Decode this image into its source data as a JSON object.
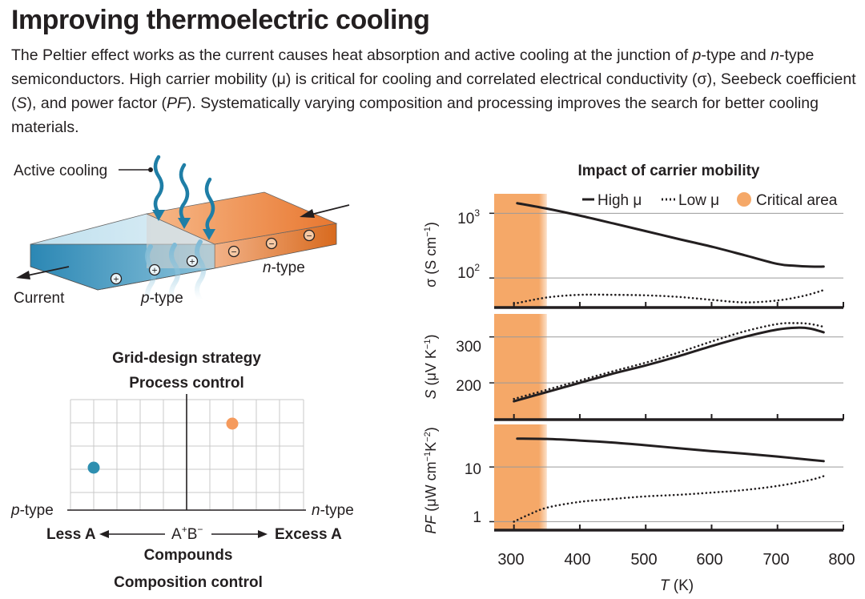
{
  "header": {
    "title": "Improving thermoelectric cooling",
    "intro": {
      "p1": "The Peltier effect works as the current causes heat absorption and active cooling at the junction of ",
      "p_type": "p",
      "p2": "-type and ",
      "n_type": "n",
      "p3": "-type semiconductors. High carrier mobility (μ) is critical for cooling and correlated electrical conductivity (σ), Seebeck coefficient (",
      "S": "S",
      "p4": "), and power factor (",
      "PF": "PF",
      "p5": "). Systematically varying composition and processing improves the search for better cooling materials."
    }
  },
  "device": {
    "active_cooling": "Active cooling",
    "current": "Current",
    "p_type_letter": "p",
    "p_type_suffix": "-type",
    "n_type_letter": "n",
    "n_type_suffix": "-type",
    "plus_sign": "+",
    "minus_sign": "−"
  },
  "grid_design": {
    "title": "Grid-design strategy",
    "process_control": "Process control",
    "p_type_letter": "p",
    "p_type_suffix": "-type",
    "n_type_letter": "n",
    "n_type_suffix": "-type",
    "less_a": "Less A",
    "excess_a": "Excess A",
    "compound_a": "A",
    "compound_a_sup": "+",
    "compound_b": "B",
    "compound_b_sup": "−",
    "compounds": "Compounds",
    "composition_control": "Composition control",
    "colors": {
      "blue_point": "#2e8fb0",
      "orange_point": "#f59a5c"
    }
  },
  "chart_data": {
    "type": "line",
    "title": "Impact of carrier mobility",
    "legend": {
      "high": "High μ",
      "low": "Low μ",
      "critical": "Critical area",
      "placement": "top"
    },
    "xlabel_var": "T",
    "xlabel_unit": " (K)",
    "x_ticks": [
      "300",
      "400",
      "500",
      "600",
      "700",
      "800"
    ],
    "xlim": [
      270,
      800
    ],
    "critical_range": [
      270,
      350
    ],
    "colors": {
      "critical": "#f5a868",
      "lines": "#231f20"
    },
    "panels": [
      {
        "id": "sigma",
        "ylabel_var": "σ",
        "ylabel_unit": " (S cm",
        "ylabel_sup": "−1",
        "ylabel_end": ")",
        "scale": "log",
        "ylim": [
          35,
          2000
        ],
        "tick_labels": [
          {
            "base": "10",
            "exp": "3",
            "value": 1000
          },
          {
            "base": "10",
            "exp": "2",
            "value": 100
          }
        ],
        "series": [
          {
            "name": "High μ",
            "style": "solid",
            "x": [
              305,
              350,
              400,
              450,
              500,
              550,
              600,
              650,
              700,
              725,
              750,
              770
            ],
            "y": [
              1430,
              1180,
              920,
              700,
              530,
              400,
              305,
              225,
              165,
              155,
              150,
              150
            ]
          },
          {
            "name": "Low μ",
            "style": "dotted",
            "x": [
              300,
              350,
              400,
              450,
              500,
              550,
              600,
              650,
              700,
              740,
              770
            ],
            "y": [
              40,
              50,
              55,
              55,
              54,
              51,
              46,
              42,
              45,
              53,
              65
            ]
          }
        ]
      },
      {
        "id": "seebeck",
        "ylabel_var": "S",
        "ylabel_unit": " (μV K",
        "ylabel_sup": "−1",
        "ylabel_end": ")",
        "scale": "linear",
        "ylim": [
          120,
          350
        ],
        "tick_labels": [
          {
            "base": "300",
            "exp": "",
            "value": 300
          },
          {
            "base": "200",
            "exp": "",
            "value": 200
          }
        ],
        "series": [
          {
            "name": "High μ",
            "style": "solid",
            "x": [
              300,
              350,
              400,
              450,
              500,
              550,
              600,
              650,
              700,
              730,
              750,
              770
            ],
            "y": [
              160,
              180,
              200,
              220,
              238,
              258,
              280,
              300,
              316,
              320,
              318,
              310
            ]
          },
          {
            "name": "Low μ",
            "style": "dotted",
            "x": [
              300,
              350,
              400,
              450,
              500,
              550,
              600,
              650,
              700,
              730,
              750,
              770
            ],
            "y": [
              165,
              185,
              205,
              225,
              244,
              266,
              290,
              312,
              328,
              330,
              328,
              322
            ]
          }
        ]
      },
      {
        "id": "pf",
        "ylabel_var": "PF",
        "ylabel_unit": " (μW cm",
        "ylabel_sup": "−1",
        "ylabel_mid": "K",
        "ylabel_sup2": "−2",
        "ylabel_end": ")",
        "scale": "log",
        "ylim": [
          0.7,
          60
        ],
        "tick_labels": [
          {
            "base": "10",
            "exp": "",
            "value": 10
          },
          {
            "base": "1",
            "exp": "",
            "value": 1
          }
        ],
        "series": [
          {
            "name": "High μ",
            "style": "solid",
            "x": [
              305,
              350,
              400,
              450,
              500,
              550,
              600,
              650,
              700,
              750,
              770
            ],
            "y": [
              33,
              32.5,
              30.5,
              28,
              25,
              22,
              19.5,
              17.5,
              15.5,
              13.5,
              12.8
            ]
          },
          {
            "name": "Low μ",
            "style": "dotted",
            "x": [
              300,
              320,
              350,
              400,
              450,
              500,
              550,
              600,
              650,
              700,
              750,
              770
            ],
            "y": [
              1.0,
              1.3,
              1.8,
              2.3,
              2.6,
              2.9,
              3.1,
              3.4,
              3.8,
              4.5,
              5.8,
              6.8
            ]
          }
        ]
      }
    ]
  }
}
